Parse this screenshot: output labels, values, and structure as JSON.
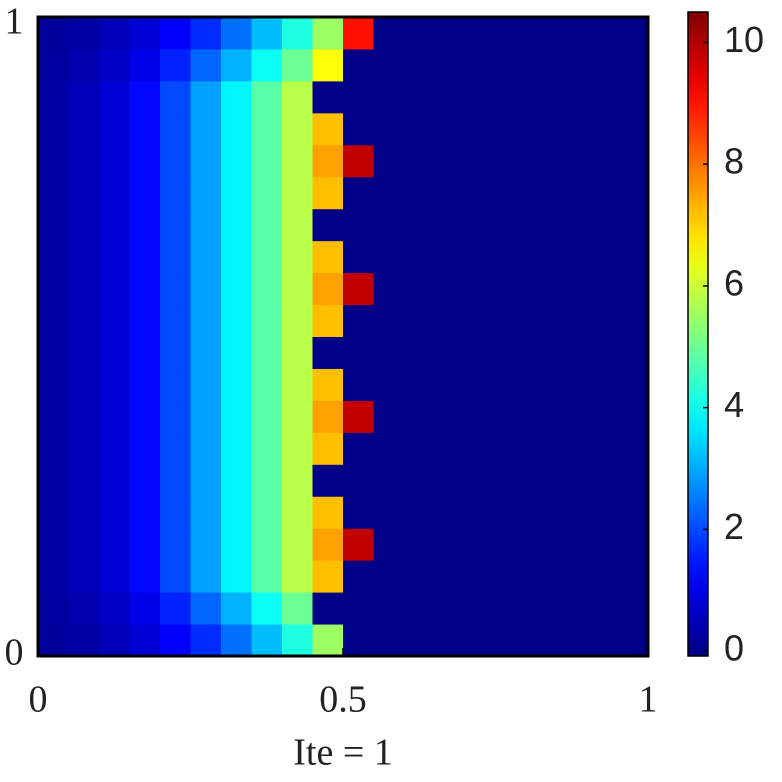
{
  "chart_data": {
    "type": "heatmap",
    "xlabel": "Ite = 1",
    "x": [
      0.025,
      0.075,
      0.125,
      0.175,
      0.225,
      0.275,
      0.325,
      0.375,
      0.425,
      0.475,
      0.525,
      0.575,
      0.625,
      0.675,
      0.725,
      0.775,
      0.825,
      0.875,
      0.925,
      0.975
    ],
    "y": [
      0.025,
      0.075,
      0.125,
      0.175,
      0.225,
      0.275,
      0.325,
      0.375,
      0.425,
      0.475,
      0.525,
      0.575,
      0.625,
      0.675,
      0.725,
      0.775,
      0.825,
      0.875,
      0.925,
      0.975
    ],
    "z": [
      [
        0.2,
        0.3,
        0.5,
        0.8,
        1.2,
        1.7,
        2.4,
        3.2,
        4.2,
        5.5,
        0,
        0,
        0,
        0,
        0,
        0,
        0,
        0,
        0,
        0
      ],
      [
        0.25,
        0.4,
        0.65,
        1.0,
        1.6,
        2.3,
        3.1,
        4.0,
        5.0,
        0,
        0,
        0,
        0,
        0,
        0,
        0,
        0,
        0,
        0,
        0
      ],
      [
        0.3,
        0.5,
        0.8,
        1.3,
        2.0,
        2.9,
        3.8,
        4.8,
        5.8,
        7.2,
        0,
        0,
        0,
        0,
        0,
        0,
        0,
        0,
        0,
        0
      ],
      [
        0.3,
        0.5,
        0.8,
        1.3,
        2.0,
        2.9,
        3.8,
        4.8,
        5.8,
        7.5,
        9.8,
        0,
        0,
        0,
        0,
        0,
        0,
        0,
        0,
        0
      ],
      [
        0.3,
        0.5,
        0.8,
        1.3,
        2.0,
        2.9,
        3.8,
        4.8,
        5.8,
        7.2,
        0,
        0,
        0,
        0,
        0,
        0,
        0,
        0,
        0,
        0
      ],
      [
        0.3,
        0.5,
        0.8,
        1.3,
        2.0,
        2.9,
        3.8,
        4.8,
        5.8,
        0,
        0,
        0,
        0,
        0,
        0,
        0,
        0,
        0,
        0,
        0
      ],
      [
        0.3,
        0.5,
        0.8,
        1.3,
        2.0,
        2.9,
        3.8,
        4.8,
        5.8,
        7.2,
        0,
        0,
        0,
        0,
        0,
        0,
        0,
        0,
        0,
        0
      ],
      [
        0.3,
        0.5,
        0.8,
        1.3,
        2.0,
        2.9,
        3.8,
        4.8,
        5.8,
        7.5,
        9.8,
        0,
        0,
        0,
        0,
        0,
        0,
        0,
        0,
        0
      ],
      [
        0.3,
        0.5,
        0.8,
        1.3,
        2.0,
        2.9,
        3.8,
        4.8,
        5.8,
        7.2,
        0,
        0,
        0,
        0,
        0,
        0,
        0,
        0,
        0,
        0
      ],
      [
        0.3,
        0.5,
        0.8,
        1.3,
        2.0,
        2.9,
        3.8,
        4.8,
        5.8,
        0,
        0,
        0,
        0,
        0,
        0,
        0,
        0,
        0,
        0,
        0
      ],
      [
        0.3,
        0.5,
        0.8,
        1.3,
        2.0,
        2.9,
        3.8,
        4.8,
        5.8,
        7.2,
        0,
        0,
        0,
        0,
        0,
        0,
        0,
        0,
        0,
        0
      ],
      [
        0.3,
        0.5,
        0.8,
        1.3,
        2.0,
        2.9,
        3.8,
        4.8,
        5.8,
        7.5,
        9.8,
        0,
        0,
        0,
        0,
        0,
        0,
        0,
        0,
        0
      ],
      [
        0.3,
        0.5,
        0.8,
        1.3,
        2.0,
        2.9,
        3.8,
        4.8,
        5.8,
        7.2,
        0,
        0,
        0,
        0,
        0,
        0,
        0,
        0,
        0,
        0
      ],
      [
        0.3,
        0.5,
        0.8,
        1.3,
        2.0,
        2.9,
        3.8,
        4.8,
        5.8,
        0,
        0,
        0,
        0,
        0,
        0,
        0,
        0,
        0,
        0,
        0
      ],
      [
        0.3,
        0.5,
        0.8,
        1.3,
        2.0,
        2.9,
        3.8,
        4.8,
        5.8,
        7.2,
        0,
        0,
        0,
        0,
        0,
        0,
        0,
        0,
        0,
        0
      ],
      [
        0.3,
        0.5,
        0.8,
        1.3,
        2.0,
        2.9,
        3.8,
        4.8,
        5.8,
        7.5,
        9.8,
        0,
        0,
        0,
        0,
        0,
        0,
        0,
        0,
        0
      ],
      [
        0.3,
        0.5,
        0.8,
        1.3,
        2.0,
        2.9,
        3.8,
        4.8,
        5.8,
        7.2,
        0,
        0,
        0,
        0,
        0,
        0,
        0,
        0,
        0,
        0
      ],
      [
        0.3,
        0.5,
        0.8,
        1.3,
        2.0,
        2.9,
        3.8,
        4.8,
        5.8,
        0,
        0,
        0,
        0,
        0,
        0,
        0,
        0,
        0,
        0,
        0
      ],
      [
        0.25,
        0.4,
        0.65,
        1.0,
        1.6,
        2.3,
        3.1,
        4.0,
        5.0,
        6.5,
        0,
        0,
        0,
        0,
        0,
        0,
        0,
        0,
        0,
        0
      ],
      [
        0.2,
        0.3,
        0.5,
        0.8,
        1.2,
        1.7,
        2.4,
        3.2,
        4.2,
        5.5,
        9.0,
        0,
        0,
        0,
        0,
        0,
        0,
        0,
        0,
        0
      ]
    ],
    "xlim": [
      0,
      1
    ],
    "ylim": [
      0,
      1
    ],
    "xticks": [
      0,
      0.5,
      1
    ],
    "yticks": [
      0,
      1
    ],
    "colormap": "jet",
    "clim": [
      -0.08,
      10.5
    ],
    "cticks": [
      0,
      2,
      4,
      6,
      8,
      10
    ]
  }
}
